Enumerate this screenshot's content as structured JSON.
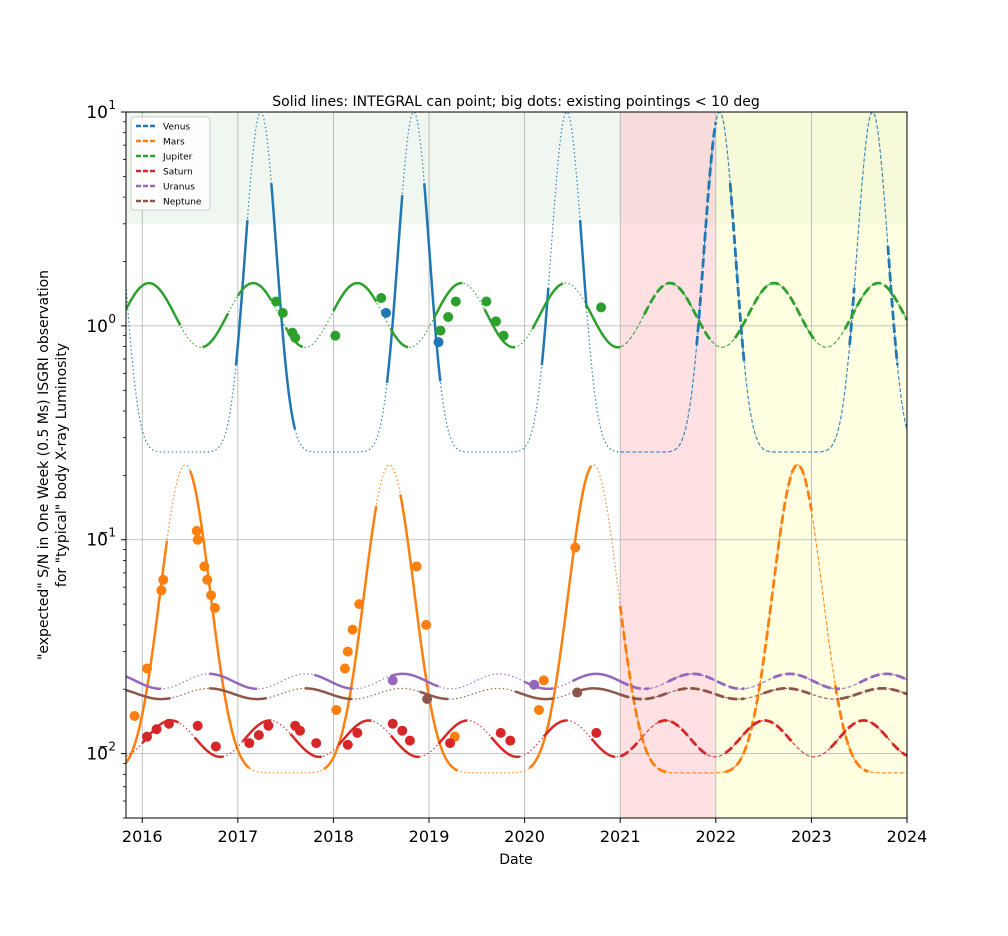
{
  "chart_data": {
    "type": "line",
    "title": "Solid lines: INTEGRAL can point; big dots: existing pointings < 10 deg",
    "xlabel": "Date",
    "ylabel_line1": "\"expected\" S/N in One Week (0.5 Ms) ISGRI observation",
    "ylabel_line2": "for \"typical\" body X-ray Luminosity",
    "xlim": [
      2015.83,
      2024.0
    ],
    "ylim": [
      0.005,
      10
    ],
    "yscale": "log",
    "grid": true,
    "legend_position": "upper-left",
    "xticks": [
      2016,
      2017,
      2018,
      2019,
      2020,
      2021,
      2022,
      2023,
      2024
    ],
    "xtick_labels": [
      "2016",
      "2017",
      "2018",
      "2019",
      "2020",
      "2021",
      "2022",
      "2023",
      "2024"
    ],
    "ytick_labels": [
      {
        "value": 10,
        "base": "10",
        "exp": "1"
      },
      {
        "value": 1,
        "base": "10",
        "exp": "0"
      },
      {
        "value": 0.1,
        "base": "10",
        "exp": "−1"
      },
      {
        "value": 0.01,
        "base": "10",
        "exp": "−2"
      }
    ],
    "shaded_regions": [
      {
        "x": [
          2015.83,
          2024.0
        ],
        "y": [
          3,
          10
        ],
        "color": "#e6f2e6",
        "opacity": 0.6
      },
      {
        "x": [
          2021.0,
          2022.0
        ],
        "y": [
          0.005,
          10
        ],
        "color": "#ffb3ba",
        "opacity": 0.4
      },
      {
        "x": [
          2022.0,
          2024.0
        ],
        "y": [
          0.005,
          10
        ],
        "color": "#ffffb3",
        "opacity": 0.4
      }
    ],
    "series": [
      {
        "name": "Venus",
        "color": "#1f77b4",
        "dots": [
          [
            2018.55,
            1.15
          ],
          [
            2019.1,
            0.84
          ]
        ]
      },
      {
        "name": "Mars",
        "color": "#ff7f0e",
        "dots": [
          [
            2015.92,
            0.015
          ],
          [
            2016.05,
            0.025
          ],
          [
            2016.2,
            0.058
          ],
          [
            2016.22,
            0.065
          ],
          [
            2016.57,
            0.11
          ],
          [
            2016.58,
            0.1
          ],
          [
            2016.65,
            0.075
          ],
          [
            2016.68,
            0.065
          ],
          [
            2016.72,
            0.055
          ],
          [
            2016.76,
            0.048
          ],
          [
            2018.03,
            0.016
          ],
          [
            2018.12,
            0.025
          ],
          [
            2018.15,
            0.03
          ],
          [
            2018.2,
            0.038
          ],
          [
            2018.27,
            0.05
          ],
          [
            2018.87,
            0.075
          ],
          [
            2018.97,
            0.04
          ],
          [
            2019.27,
            0.012
          ],
          [
            2020.15,
            0.016
          ],
          [
            2020.2,
            0.022
          ],
          [
            2020.53,
            0.092
          ]
        ]
      },
      {
        "name": "Jupiter",
        "color": "#2ca02c",
        "dots": [
          [
            2017.4,
            1.3
          ],
          [
            2017.47,
            1.15
          ],
          [
            2017.57,
            0.93
          ],
          [
            2017.6,
            0.88
          ],
          [
            2018.02,
            0.9
          ],
          [
            2018.5,
            1.35
          ],
          [
            2019.12,
            0.95
          ],
          [
            2019.2,
            1.1
          ],
          [
            2019.28,
            1.3
          ],
          [
            2019.6,
            1.3
          ],
          [
            2019.7,
            1.05
          ],
          [
            2019.78,
            0.9
          ],
          [
            2020.8,
            1.22
          ]
        ]
      },
      {
        "name": "Saturn",
        "color": "#d62728",
        "dots": [
          [
            2016.05,
            0.012
          ],
          [
            2016.15,
            0.013
          ],
          [
            2016.28,
            0.0138
          ],
          [
            2016.58,
            0.0135
          ],
          [
            2016.77,
            0.0108
          ],
          [
            2017.12,
            0.0112
          ],
          [
            2017.22,
            0.0122
          ],
          [
            2017.32,
            0.0135
          ],
          [
            2017.6,
            0.0135
          ],
          [
            2017.65,
            0.0128
          ],
          [
            2017.82,
            0.0112
          ],
          [
            2018.15,
            0.011
          ],
          [
            2018.25,
            0.0125
          ],
          [
            2018.62,
            0.0138
          ],
          [
            2018.72,
            0.0128
          ],
          [
            2018.8,
            0.0115
          ],
          [
            2019.22,
            0.0112
          ],
          [
            2019.75,
            0.0125
          ],
          [
            2019.85,
            0.0115
          ],
          [
            2020.75,
            0.0125
          ]
        ]
      },
      {
        "name": "Uranus",
        "color": "#9467bd",
        "dots": [
          [
            2018.62,
            0.022
          ],
          [
            2020.1,
            0.021
          ]
        ]
      },
      {
        "name": "Neptune",
        "color": "#8c564b",
        "dots": [
          [
            2018.98,
            0.018
          ],
          [
            2020.55,
            0.0193
          ]
        ]
      }
    ]
  }
}
